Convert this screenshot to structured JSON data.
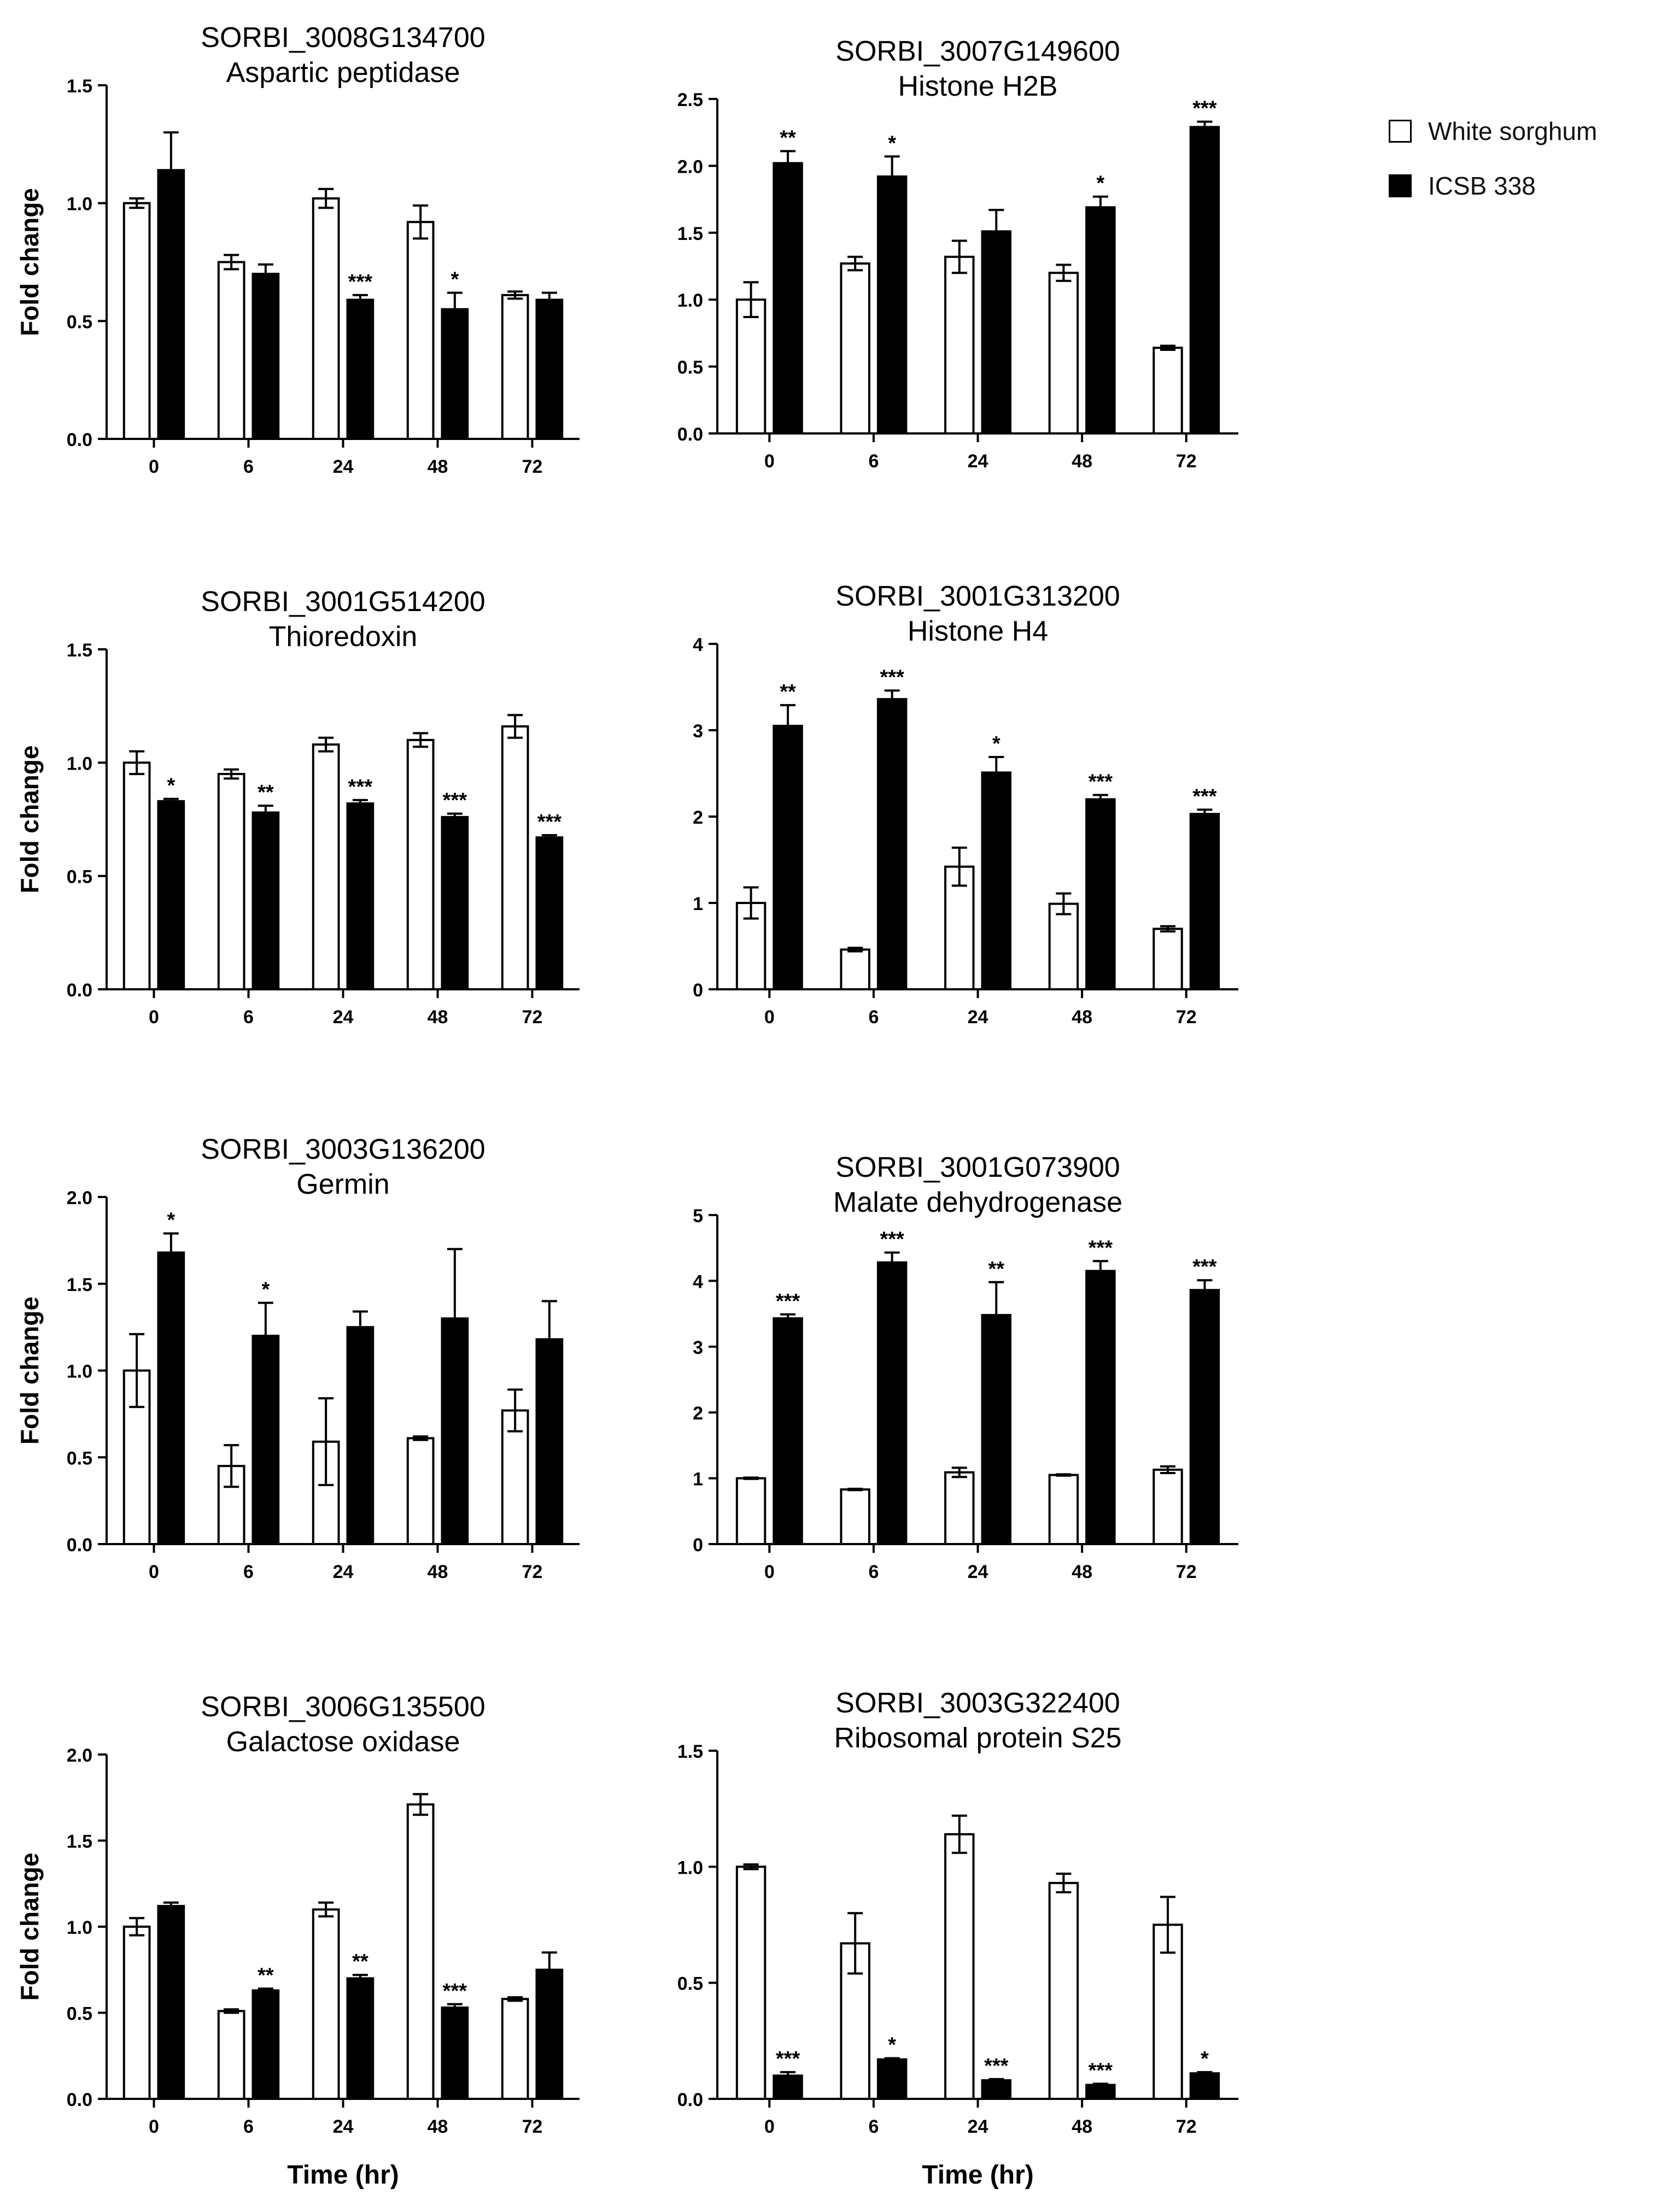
{
  "figure": {
    "colors": {
      "white_fill": "#ffffff",
      "black_fill": "#000000",
      "ink": "#000000"
    },
    "legend": [
      {
        "name": "White sorghum",
        "fill": "#ffffff"
      },
      {
        "name": "ICSB 338",
        "fill": "#000000"
      }
    ],
    "ylabel": "Fold change",
    "xlabel": "Time (hr)"
  },
  "chart_data": [
    {
      "type": "bar",
      "title": "SORBI_3008G134700",
      "subtitle": "Aspartic peptidase",
      "categories": [
        "0",
        "6",
        "24",
        "48",
        "72"
      ],
      "ylabel": "Fold change",
      "xlabel": "",
      "ylim": [
        0,
        1.5
      ],
      "yticks": [
        "0.0",
        "0.5",
        "1.0",
        "1.5"
      ],
      "series": [
        {
          "name": "White sorghum",
          "values": [
            1.0,
            0.75,
            1.02,
            0.92,
            0.61
          ],
          "errors": [
            0.02,
            0.03,
            0.04,
            0.07,
            0.015
          ],
          "sig": [
            "",
            "",
            "",
            "",
            ""
          ]
        },
        {
          "name": "ICSB 338",
          "values": [
            1.14,
            0.7,
            0.59,
            0.55,
            0.59
          ],
          "errors": [
            0.16,
            0.04,
            0.02,
            0.07,
            0.03
          ],
          "sig": [
            "",
            "",
            "***",
            "*",
            ""
          ]
        }
      ]
    },
    {
      "type": "bar",
      "title": "SORBI_3007G149600",
      "subtitle": "Histone H2B",
      "categories": [
        "0",
        "6",
        "24",
        "48",
        "72"
      ],
      "ylabel": "",
      "xlabel": "",
      "ylim": [
        0,
        2.5
      ],
      "yticks": [
        "0.0",
        "0.5",
        "1.0",
        "1.5",
        "2.0",
        "2.5"
      ],
      "series": [
        {
          "name": "White sorghum",
          "values": [
            1.0,
            1.27,
            1.32,
            1.2,
            0.64
          ],
          "errors": [
            0.13,
            0.05,
            0.12,
            0.06,
            0.015
          ],
          "sig": [
            "",
            "",
            "",
            "",
            ""
          ]
        },
        {
          "name": "ICSB 338",
          "values": [
            2.02,
            1.92,
            1.51,
            1.69,
            2.29
          ],
          "errors": [
            0.09,
            0.15,
            0.16,
            0.08,
            0.04
          ],
          "sig": [
            "**",
            "*",
            "",
            "*",
            "***"
          ]
        }
      ]
    },
    {
      "type": "bar",
      "title": "SORBI_3001G514200",
      "subtitle": "Thioredoxin",
      "categories": [
        "0",
        "6",
        "24",
        "48",
        "72"
      ],
      "ylabel": "Fold change",
      "xlabel": "",
      "ylim": [
        0,
        1.5
      ],
      "yticks": [
        "0.0",
        "0.5",
        "1.0",
        "1.5"
      ],
      "series": [
        {
          "name": "White sorghum",
          "values": [
            1.0,
            0.95,
            1.08,
            1.1,
            1.16
          ],
          "errors": [
            0.05,
            0.02,
            0.03,
            0.03,
            0.05
          ],
          "sig": [
            "",
            "",
            "",
            "",
            ""
          ]
        },
        {
          "name": "ICSB 338",
          "values": [
            0.83,
            0.78,
            0.82,
            0.76,
            0.67
          ],
          "errors": [
            0.01,
            0.03,
            0.015,
            0.015,
            0.01
          ],
          "sig": [
            "*",
            "**",
            "***",
            "***",
            "***"
          ]
        }
      ]
    },
    {
      "type": "bar",
      "title": "SORBI_3001G313200",
      "subtitle": "Histone H4",
      "categories": [
        "0",
        "6",
        "24",
        "48",
        "72"
      ],
      "ylabel": "",
      "xlabel": "",
      "ylim": [
        0,
        4
      ],
      "yticks": [
        "0",
        "1",
        "2",
        "3",
        "4"
      ],
      "series": [
        {
          "name": "White sorghum",
          "values": [
            1.0,
            0.46,
            1.42,
            0.99,
            0.7
          ],
          "errors": [
            0.18,
            0.02,
            0.22,
            0.12,
            0.03
          ],
          "sig": [
            "",
            "",
            "",
            "",
            ""
          ]
        },
        {
          "name": "ICSB 338",
          "values": [
            3.05,
            3.36,
            2.51,
            2.2,
            2.03
          ],
          "errors": [
            0.24,
            0.1,
            0.18,
            0.05,
            0.05
          ],
          "sig": [
            "**",
            "***",
            "*",
            "***",
            "***"
          ]
        }
      ]
    },
    {
      "type": "bar",
      "title": "SORBI_3003G136200",
      "subtitle": "Germin",
      "categories": [
        "0",
        "6",
        "24",
        "48",
        "72"
      ],
      "ylabel": "Fold change",
      "xlabel": "",
      "ylim": [
        0,
        2.0
      ],
      "yticks": [
        "0.0",
        "0.5",
        "1.0",
        "1.5",
        "2.0"
      ],
      "series": [
        {
          "name": "White sorghum",
          "values": [
            1.0,
            0.45,
            0.59,
            0.61,
            0.77
          ],
          "errors": [
            0.21,
            0.12,
            0.25,
            0.01,
            0.12
          ],
          "sig": [
            "",
            "",
            "",
            "",
            ""
          ]
        },
        {
          "name": "ICSB 338",
          "values": [
            1.68,
            1.2,
            1.25,
            1.3,
            1.18
          ],
          "errors": [
            0.11,
            0.19,
            0.09,
            0.4,
            0.22
          ],
          "sig": [
            "*",
            "*",
            "",
            "",
            ""
          ]
        }
      ]
    },
    {
      "type": "bar",
      "title": "SORBI_3001G073900",
      "subtitle": "Malate dehydrogenase",
      "categories": [
        "0",
        "6",
        "24",
        "48",
        "72"
      ],
      "ylabel": "",
      "xlabel": "",
      "ylim": [
        0,
        5
      ],
      "yticks": [
        "0",
        "1",
        "2",
        "3",
        "4",
        "5"
      ],
      "series": [
        {
          "name": "White sorghum",
          "values": [
            1.0,
            0.83,
            1.09,
            1.05,
            1.13
          ],
          "errors": [
            0.01,
            0.01,
            0.07,
            0.01,
            0.05
          ],
          "sig": [
            "",
            "",
            "",
            "",
            ""
          ]
        },
        {
          "name": "ICSB 338",
          "values": [
            3.43,
            4.28,
            3.48,
            4.15,
            3.86
          ],
          "errors": [
            0.06,
            0.15,
            0.5,
            0.15,
            0.15
          ],
          "sig": [
            "***",
            "***",
            "**",
            "***",
            "***"
          ]
        }
      ]
    },
    {
      "type": "bar",
      "title": "SORBI_3006G135500",
      "subtitle": "Galactose oxidase",
      "categories": [
        "0",
        "6",
        "24",
        "48",
        "72"
      ],
      "ylabel": "Fold change",
      "xlabel": "Time (hr)",
      "ylim": [
        0,
        2.0
      ],
      "yticks": [
        "0.0",
        "0.5",
        "1.0",
        "1.5",
        "2.0"
      ],
      "series": [
        {
          "name": "White sorghum",
          "values": [
            1.0,
            0.51,
            1.1,
            1.71,
            0.58
          ],
          "errors": [
            0.05,
            0.01,
            0.04,
            0.06,
            0.01
          ],
          "sig": [
            "",
            "",
            "",
            "",
            ""
          ]
        },
        {
          "name": "ICSB 338",
          "values": [
            1.12,
            0.63,
            0.7,
            0.53,
            0.75
          ],
          "errors": [
            0.02,
            0.01,
            0.02,
            0.02,
            0.1
          ],
          "sig": [
            "",
            "**",
            "**",
            "***",
            ""
          ]
        }
      ]
    },
    {
      "type": "bar",
      "title": "SORBI_3003G322400",
      "subtitle": "Ribosomal protein S25",
      "categories": [
        "0",
        "6",
        "24",
        "48",
        "72"
      ],
      "ylabel": "",
      "xlabel": "Time (hr)",
      "ylim": [
        0,
        1.5
      ],
      "yticks": [
        "0.0",
        "0.5",
        "1.0",
        "1.5"
      ],
      "series": [
        {
          "name": "White sorghum",
          "values": [
            1.0,
            0.67,
            1.14,
            0.93,
            0.75
          ],
          "errors": [
            0.01,
            0.13,
            0.08,
            0.04,
            0.12
          ],
          "sig": [
            "",
            "",
            "",
            "",
            ""
          ]
        },
        {
          "name": "ICSB 338",
          "values": [
            0.1,
            0.17,
            0.08,
            0.06,
            0.11
          ],
          "errors": [
            0.015,
            0.005,
            0.005,
            0.005,
            0.005
          ],
          "sig": [
            "***",
            "*",
            "***",
            "***",
            "*"
          ]
        }
      ]
    }
  ]
}
